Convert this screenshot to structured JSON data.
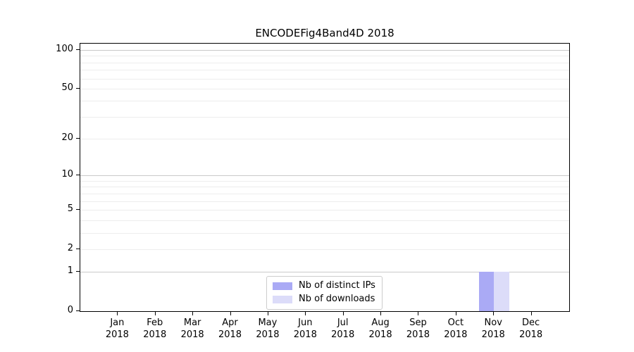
{
  "chart_data": {
    "type": "bar",
    "title": "ENCODEFig4Band4D 2018",
    "categories": [
      {
        "month": "Jan",
        "year": "2018"
      },
      {
        "month": "Feb",
        "year": "2018"
      },
      {
        "month": "Mar",
        "year": "2018"
      },
      {
        "month": "Apr",
        "year": "2018"
      },
      {
        "month": "May",
        "year": "2018"
      },
      {
        "month": "Jun",
        "year": "2018"
      },
      {
        "month": "Jul",
        "year": "2018"
      },
      {
        "month": "Aug",
        "year": "2018"
      },
      {
        "month": "Sep",
        "year": "2018"
      },
      {
        "month": "Oct",
        "year": "2018"
      },
      {
        "month": "Nov",
        "year": "2018"
      },
      {
        "month": "Dec",
        "year": "2018"
      }
    ],
    "series": [
      {
        "name": "Nb of distinct IPs",
        "color": "#aaaaf5",
        "values": [
          0,
          0,
          0,
          0,
          0,
          0,
          0,
          0,
          0,
          0,
          1,
          0
        ]
      },
      {
        "name": "Nb of downloads",
        "color": "#dcdcf9",
        "values": [
          0,
          0,
          0,
          0,
          0,
          0,
          0,
          0,
          0,
          0,
          1,
          0
        ]
      }
    ],
    "yscale": "log1p",
    "ylim": [
      0,
      112
    ],
    "yticks": [
      0,
      1,
      2,
      5,
      10,
      20,
      50,
      100
    ],
    "major_gridlines": [
      1,
      10,
      100
    ],
    "minor_gridlines": [
      2,
      3,
      4,
      5,
      6,
      7,
      8,
      9,
      20,
      30,
      40,
      50,
      60,
      70,
      80,
      90
    ],
    "grid": "horizontal, major and minor",
    "bar_width_fraction": 0.4,
    "legend_position": "lower center",
    "colors": {
      "major_grid": "#c9c9c9",
      "minor_grid": "#ededed",
      "spine": "#000000",
      "text": "#000000"
    }
  }
}
